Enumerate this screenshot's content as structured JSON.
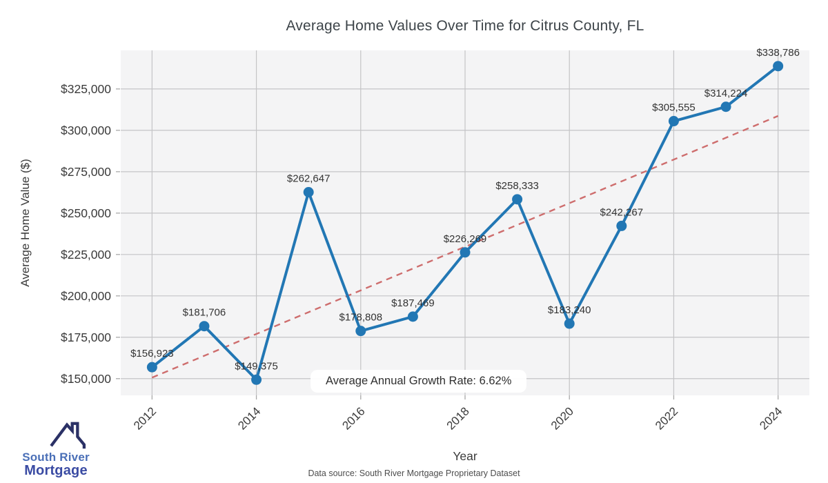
{
  "title": "Average Home Values Over Time for Citrus County, FL",
  "chart_data": {
    "type": "line",
    "title": "Average Home Values Over Time for Citrus County, FL",
    "xlabel": "Year",
    "ylabel": "Average Home Value ($)",
    "x": [
      2012,
      2013,
      2014,
      2015,
      2016,
      2017,
      2018,
      2019,
      2020,
      2021,
      2022,
      2023,
      2024
    ],
    "series": [
      {
        "name": "Average Home Value",
        "values": [
          156923,
          181706,
          149375,
          262647,
          178808,
          187469,
          226269,
          258333,
          183240,
          242267,
          305555,
          314224,
          338786
        ]
      }
    ],
    "point_labels": [
      "$156,923",
      "$181,706",
      "$149,375",
      "$262,647",
      "$178,808",
      "$187,469",
      "$226,269",
      "$258,333",
      "$183,240",
      "$242,267",
      "$305,555",
      "$314,224",
      "$338,786"
    ],
    "trend_line": {
      "style": "dashed",
      "x_start": 2012,
      "x_end": 2024,
      "value_start": 150636,
      "value_end": 308688
    },
    "x_ticks": [
      2012,
      2014,
      2016,
      2018,
      2020,
      2022,
      2024
    ],
    "y_ticks": [
      150000,
      175000,
      200000,
      225000,
      250000,
      275000,
      300000,
      325000
    ],
    "y_tick_labels": [
      "$150,000",
      "$175,000",
      "$200,000",
      "$225,000",
      "$250,000",
      "$275,000",
      "$300,000",
      "$325,000"
    ],
    "xlim": [
      2011.4,
      2024.6
    ],
    "ylim": [
      139900,
      348300
    ],
    "grid": true,
    "legend": "none",
    "annotation": "Average Annual Growth Rate: 6.62%"
  },
  "annotation": {
    "text": "Average Annual Growth Rate: 6.62%"
  },
  "logo": {
    "line1": "South River",
    "line2": "Mortgage"
  },
  "footer": {
    "source_text": "Data source: South River Mortgage Proprietary Dataset"
  },
  "colors": {
    "line": "#2277b4",
    "marker": "#2277b4",
    "trend": "#ce6d6d",
    "plot_bg": "#f4f4f5",
    "grid": "#c4c4c6",
    "tick_text": "#3a3a3a",
    "point_label_text": "#333333",
    "title_text": "#3d4449",
    "logo_icon": "#2b3166",
    "logo_blue": "#4a6fb7",
    "logo_dark": "#3a4ba3"
  }
}
